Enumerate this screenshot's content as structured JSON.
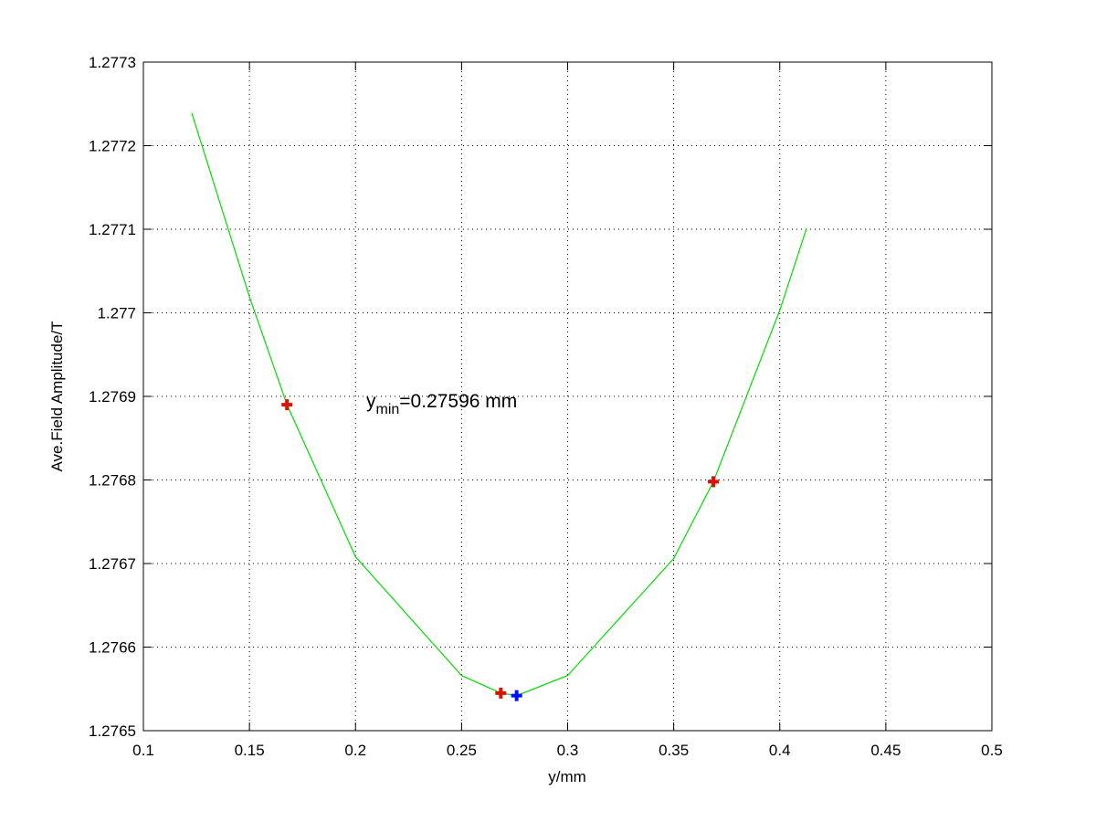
{
  "chart_data": {
    "type": "line",
    "xlabel": "y/mm",
    "ylabel": "Ave.Field Amplitude/T",
    "annotation": {
      "base": "y",
      "sub": "min",
      "rest": "=0.27596 mm"
    },
    "xlim": [
      0.1,
      0.5
    ],
    "xticks": [
      0.1,
      0.15,
      0.2,
      0.25,
      0.3,
      0.35,
      0.4,
      0.45,
      0.5
    ],
    "ylim": [
      1.2765,
      1.2773
    ],
    "yticks": [
      1.2765,
      1.2766,
      1.2767,
      1.2768,
      1.2769,
      1.277,
      1.2771,
      1.2772,
      1.2773
    ],
    "grid": true,
    "series": [
      {
        "style": "line",
        "color": "#00dd00",
        "x": [
          0.1228,
          0.15,
          0.1677,
          0.2,
          0.25,
          0.2685,
          0.276,
          0.3,
          0.35,
          0.3687,
          0.4,
          0.4126
        ],
        "values": [
          1.277239,
          1.277019,
          1.27689,
          1.276708,
          1.276566,
          1.276545,
          1.276542,
          1.276566,
          1.276706,
          1.276798,
          1.277003,
          1.277101
        ]
      },
      {
        "style": "marker",
        "color": "#dd1100",
        "x": [
          0.1677,
          0.2685,
          0.3687
        ],
        "values": [
          1.27689,
          1.276545,
          1.276798
        ]
      },
      {
        "style": "marker",
        "color": "#0011ee",
        "x": [
          0.27596
        ],
        "values": [
          1.276542
        ]
      }
    ]
  }
}
